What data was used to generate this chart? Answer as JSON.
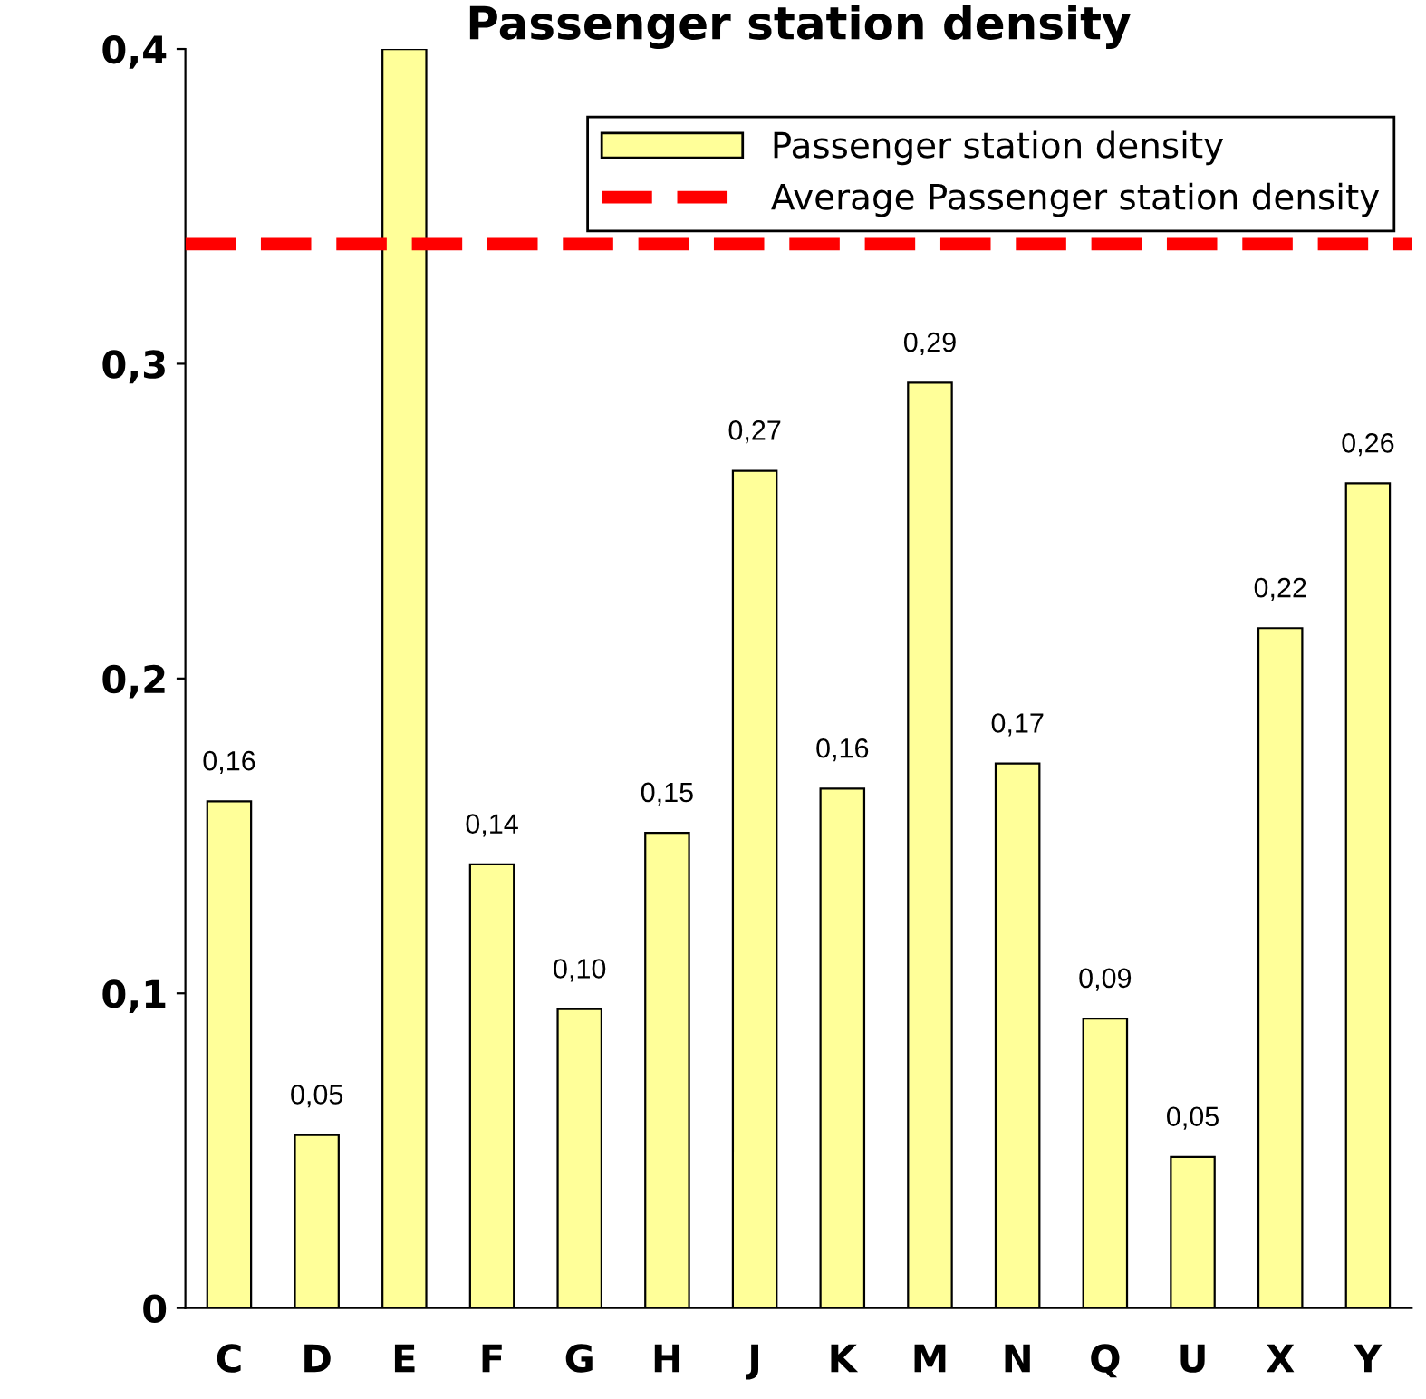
{
  "chart_data": {
    "type": "bar",
    "title": "Passenger station density",
    "categories": [
      "C",
      "D",
      "E",
      "F",
      "G",
      "H",
      "J",
      "K",
      "M",
      "N",
      "Q",
      "U",
      "X",
      "Y"
    ],
    "series": [
      {
        "name": "Passenger station density",
        "color": "#ffff99",
        "values": [
          0.161,
          0.055,
          0.4,
          0.141,
          0.095,
          0.151,
          0.266,
          0.165,
          0.294,
          0.173,
          0.092,
          0.048,
          0.216,
          0.262
        ],
        "value_labels": [
          "0,16",
          "0,05",
          null,
          "0,14",
          "0,10",
          "0,15",
          "0,27",
          "0,16",
          "0,29",
          "0,17",
          "0,09",
          "0,05",
          "0,22",
          "0,26"
        ]
      }
    ],
    "ref_lines": [
      {
        "axis": "y",
        "value": 0.338,
        "label": "Average Passenger station density",
        "color": "#ff0000",
        "line_style": "dashed"
      }
    ],
    "ylim": [
      0,
      0.4
    ],
    "yticks": [
      0,
      {
        "value": 0.1,
        "label": "0,1"
      },
      {
        "value": 0.2,
        "label": "0,2"
      },
      {
        "value": 0.3,
        "label": "0,3"
      },
      {
        "value": 0.4,
        "label": "0,4"
      }
    ],
    "grid": false,
    "legend": "top right"
  }
}
